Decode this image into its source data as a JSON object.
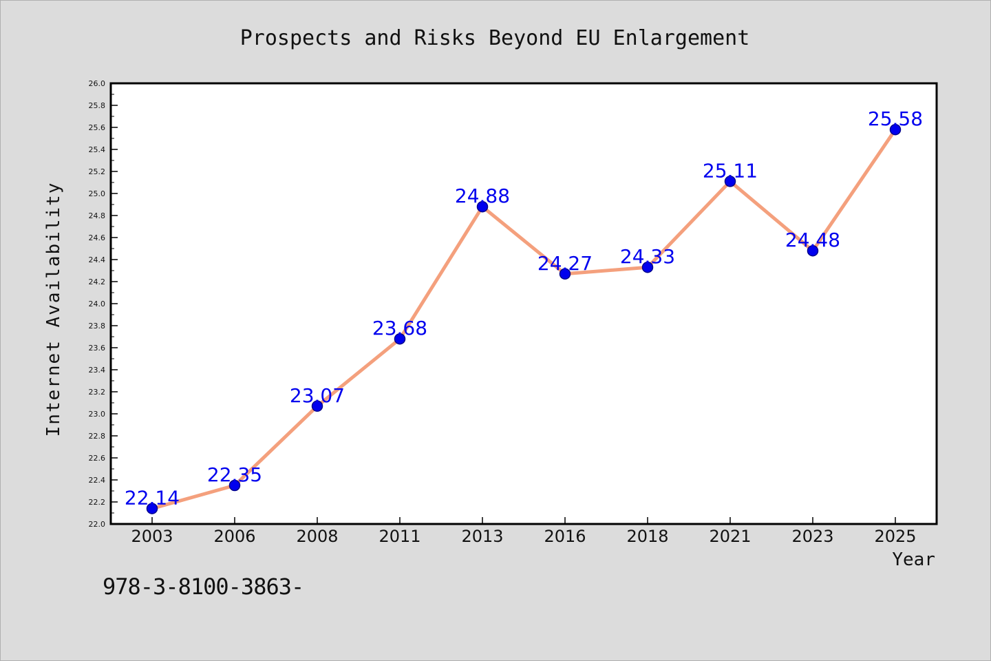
{
  "chart_data": {
    "type": "line",
    "title": "Prospects and Risks Beyond EU Enlargement",
    "xlabel": "Year",
    "ylabel": "Internet Availability",
    "categories": [
      "2003",
      "2006",
      "2008",
      "2011",
      "2013",
      "2016",
      "2018",
      "2021",
      "2023",
      "2025"
    ],
    "series": [
      {
        "values": [
          22.14,
          22.35,
          23.07,
          23.68,
          24.88,
          24.27,
          24.33,
          25.11,
          24.48,
          25.58
        ],
        "labels": [
          "22.14",
          "22.35",
          "23.07",
          "23.68",
          "24.88",
          "24.27",
          "24.33",
          "25.11",
          "24.48",
          "25.58"
        ]
      }
    ],
    "ylim": [
      22.0,
      26.0
    ],
    "yticks": [
      "22.0",
      "22.2",
      "22.4",
      "22.6",
      "22.8",
      "23.0",
      "23.2",
      "23.4",
      "23.6",
      "23.8",
      "24.0",
      "24.2",
      "24.4",
      "24.6",
      "24.8",
      "25.0",
      "25.2",
      "25.4",
      "25.6",
      "25.8",
      "26.0"
    ],
    "grid": false,
    "legend": "none",
    "colors": {
      "line": "#f4a07d",
      "marker": "#0000ee",
      "marker_edge": "#00008b",
      "data_label": "#0000ee",
      "background": "#dcdcdc",
      "plot_area": "#ffffff"
    }
  },
  "footer": {
    "isbn": "978-3-8100-3863-"
  }
}
